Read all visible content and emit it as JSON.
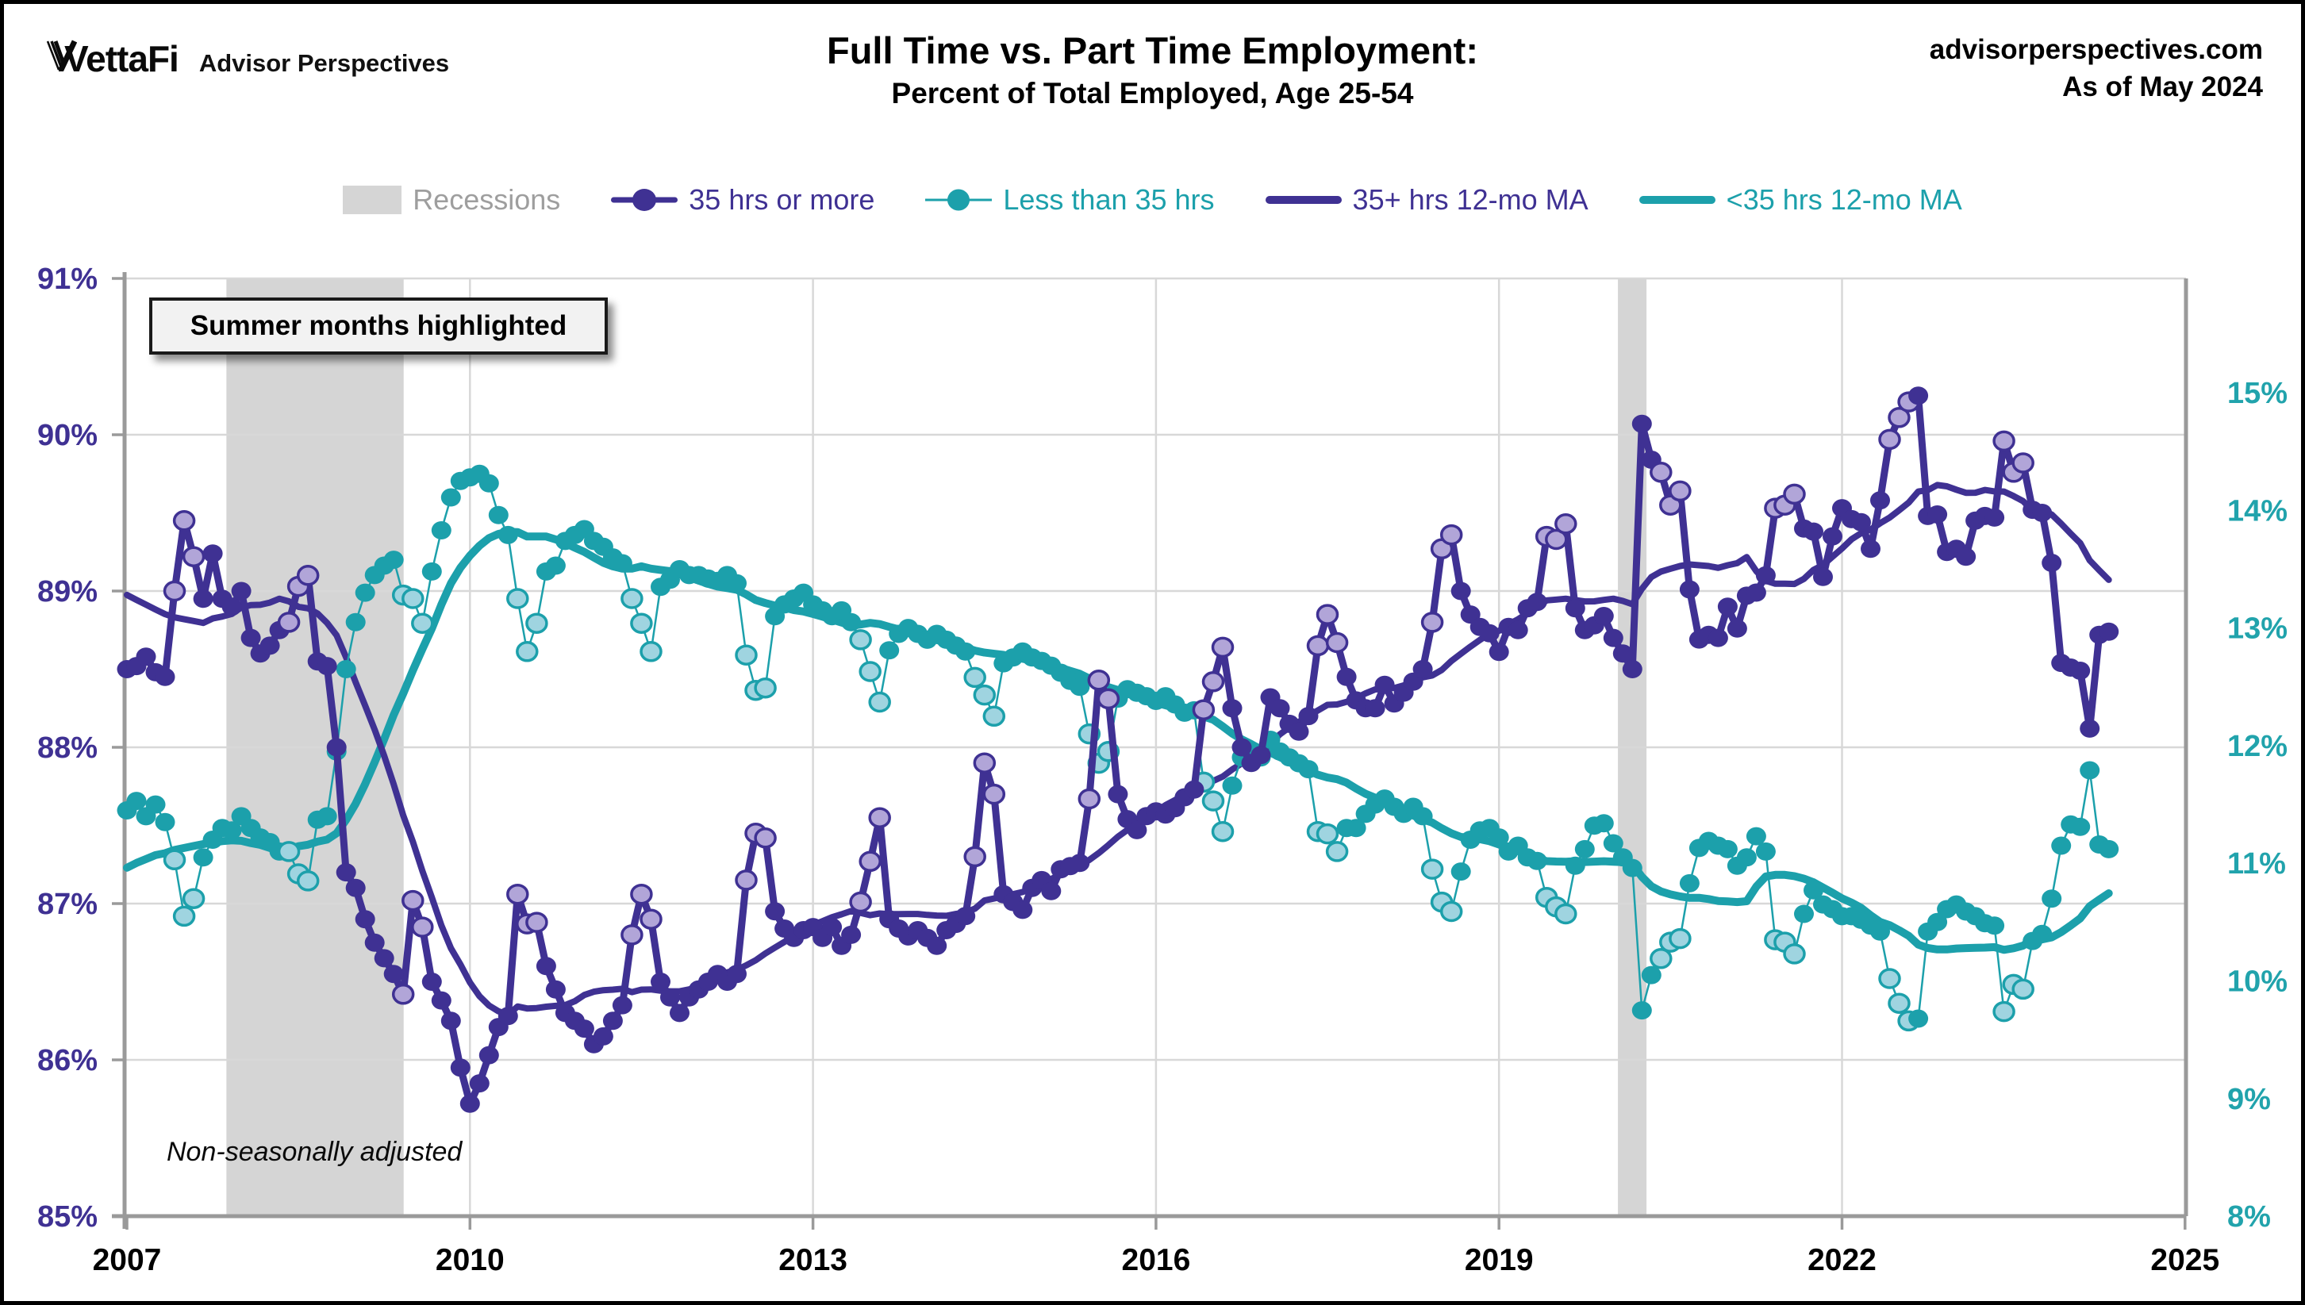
{
  "header": {
    "logo_primary": "VettaFi",
    "logo_secondary": "Advisor Perspectives",
    "title": "Full Time vs. Part Time Employment:",
    "subtitle": "Percent of Total Employed, Age 25-54",
    "source_site": "advisorperspectives.com",
    "as_of": "As of May 2024"
  },
  "annotations": {
    "summer_box": "Summer months highlighted",
    "nsa": "Non-seasonally adjusted"
  },
  "legend": [
    {
      "label": "Recessions",
      "type": "band",
      "color": "#D5D5D5",
      "text_color": "#9E9E9E"
    },
    {
      "label": "35 hrs or more",
      "type": "dot-line",
      "color": "#3F3193",
      "text_color": "#3F3193"
    },
    {
      "label": "Less than 35 hrs",
      "type": "dot-thin",
      "color": "#1CA0AB",
      "text_color": "#1CA0AB"
    },
    {
      "label": "35+ hrs 12-mo MA",
      "type": "line",
      "color": "#3F3193",
      "text_color": "#3F3193"
    },
    {
      "label": "<35 hrs 12-mo MA",
      "type": "line",
      "color": "#1CA0AB",
      "text_color": "#1CA0AB"
    }
  ],
  "chart_data": {
    "type": "line",
    "title": "Full Time vs. Part Time Employment: Percent of Total Employed, Age 25-54",
    "x_start": "2007-01",
    "x_end": "2024-05",
    "months": 209,
    "x_tick_years": [
      2007,
      2010,
      2013,
      2016,
      2019,
      2022,
      2025
    ],
    "grid_years": [
      2010,
      2013,
      2016,
      2019,
      2022
    ],
    "left_axis": {
      "ticks": [
        91,
        90,
        89,
        88,
        87,
        86,
        85
      ],
      "suffix": "%",
      "range": [
        85,
        91
      ],
      "color": "#3F3193"
    },
    "right_axis": {
      "ticks": [
        15,
        14,
        13,
        12,
        11,
        10,
        9,
        8
      ],
      "suffix": "%",
      "range": [
        8,
        15.0
      ],
      "color": "#21A3AC"
    },
    "recessions": [
      {
        "start": 2007.87,
        "end": 2009.42
      },
      {
        "start": 2020.04,
        "end": 2020.29
      }
    ],
    "summer_months_highlighted": [
      "Jun",
      "Jul",
      "Aug"
    ],
    "ma_window": 12,
    "series": [
      {
        "name": "35 hrs or more",
        "axis": "left",
        "color": "#3F3193",
        "light_color": "#B1A5D8",
        "values": [
          88.5,
          88.52,
          88.58,
          88.48,
          88.45,
          89.0,
          89.45,
          89.22,
          88.95,
          89.24,
          88.95,
          88.9,
          89.0,
          88.7,
          88.6,
          88.65,
          88.75,
          88.8,
          89.03,
          89.1,
          88.55,
          88.52,
          88.0,
          87.2,
          87.1,
          86.9,
          86.75,
          86.65,
          86.55,
          86.42,
          87.02,
          86.85,
          86.5,
          86.38,
          86.25,
          85.95,
          85.72,
          85.85,
          86.03,
          86.21,
          86.28,
          87.06,
          86.87,
          86.88,
          86.6,
          86.45,
          86.3,
          86.25,
          86.2,
          86.1,
          86.15,
          86.25,
          86.35,
          86.8,
          87.06,
          86.9,
          86.5,
          86.4,
          86.3,
          86.4,
          86.45,
          86.5,
          86.55,
          86.5,
          86.55,
          87.15,
          87.45,
          87.42,
          86.95,
          86.84,
          86.78,
          86.83,
          86.85,
          86.78,
          86.85,
          86.73,
          86.8,
          87.01,
          87.27,
          87.55,
          86.9,
          86.84,
          86.79,
          86.83,
          86.78,
          86.73,
          86.83,
          86.87,
          86.92,
          87.3,
          87.9,
          87.7,
          87.06,
          87.01,
          86.96,
          87.1,
          87.15,
          87.08,
          87.22,
          87.24,
          87.26,
          87.67,
          88.43,
          88.31,
          87.7,
          87.54,
          87.47,
          87.56,
          87.59,
          87.57,
          87.61,
          87.68,
          87.73,
          88.24,
          88.42,
          88.64,
          88.25,
          88.0,
          87.9,
          87.95,
          88.32,
          88.25,
          88.15,
          88.1,
          88.2,
          88.65,
          88.85,
          88.67,
          88.45,
          88.3,
          88.25,
          88.25,
          88.4,
          88.28,
          88.35,
          88.42,
          88.5,
          88.8,
          89.27,
          89.36,
          89.0,
          88.85,
          88.77,
          88.73,
          88.61,
          88.77,
          88.75,
          88.89,
          88.93,
          89.35,
          89.33,
          89.43,
          88.89,
          88.75,
          88.78,
          88.84,
          88.7,
          88.6,
          88.5,
          90.07,
          89.84,
          89.76,
          89.55,
          89.64,
          89.01,
          88.69,
          88.72,
          88.7,
          88.9,
          88.76,
          88.97,
          88.99,
          89.1,
          89.53,
          89.55,
          89.62,
          89.4,
          89.38,
          89.09,
          89.35,
          89.53,
          89.46,
          89.44,
          89.27,
          89.58,
          89.97,
          90.11,
          90.21,
          90.25,
          89.48,
          89.49,
          89.25,
          89.27,
          89.22,
          89.45,
          89.48,
          89.47,
          89.96,
          89.76,
          89.82,
          89.52,
          89.5,
          89.18,
          88.54,
          88.51,
          88.49,
          88.12,
          88.72,
          88.74
        ],
        "seed_prev12": [
          88.85,
          88.9,
          88.95,
          88.85,
          88.8,
          89.25,
          89.6,
          89.35,
          89.1,
          88.9,
          88.8,
          88.7
        ]
      },
      {
        "name": "Less than 35 hrs",
        "axis": "right",
        "color": "#1CA0AB",
        "light_color": "#9FD4E0",
        "values": [
          11.45,
          11.53,
          11.4,
          11.5,
          11.35,
          11.03,
          10.55,
          10.7,
          11.05,
          11.2,
          11.3,
          11.28,
          11.4,
          11.3,
          11.22,
          11.18,
          11.1,
          11.1,
          10.91,
          10.85,
          11.37,
          11.4,
          11.95,
          12.65,
          13.05,
          13.3,
          13.45,
          13.53,
          13.58,
          13.28,
          13.25,
          13.04,
          13.48,
          13.83,
          14.11,
          14.25,
          14.28,
          14.31,
          14.23,
          13.96,
          13.79,
          13.25,
          12.8,
          13.04,
          13.48,
          13.53,
          13.74,
          13.79,
          13.84,
          13.74,
          13.69,
          13.6,
          13.55,
          13.25,
          13.04,
          12.8,
          13.35,
          13.41,
          13.5,
          13.45,
          13.45,
          13.42,
          13.4,
          13.45,
          13.38,
          12.77,
          12.47,
          12.49,
          13.1,
          13.2,
          13.25,
          13.3,
          13.2,
          13.15,
          13.1,
          13.15,
          13.05,
          12.9,
          12.63,
          12.37,
          12.81,
          12.95,
          13.0,
          12.95,
          12.9,
          12.95,
          12.9,
          12.85,
          12.8,
          12.58,
          12.43,
          12.25,
          12.7,
          12.75,
          12.8,
          12.75,
          12.72,
          12.68,
          12.62,
          12.55,
          12.5,
          12.1,
          11.85,
          11.95,
          12.4,
          12.48,
          12.45,
          12.42,
          12.38,
          12.42,
          12.35,
          12.28,
          12.3,
          11.69,
          11.53,
          11.27,
          11.66,
          11.9,
          11.95,
          11.9,
          12.05,
          11.95,
          11.9,
          11.85,
          11.8,
          11.27,
          11.25,
          11.1,
          11.3,
          11.3,
          11.42,
          11.5,
          11.55,
          11.48,
          11.42,
          11.48,
          11.4,
          10.95,
          10.67,
          10.59,
          10.93,
          11.2,
          11.28,
          11.3,
          11.22,
          11.1,
          11.15,
          11.05,
          11.02,
          10.71,
          10.63,
          10.57,
          10.98,
          11.12,
          11.32,
          11.34,
          11.17,
          11.05,
          10.96,
          9.75,
          10.05,
          10.19,
          10.33,
          10.36,
          10.83,
          11.13,
          11.19,
          11.15,
          11.12,
          10.98,
          11.05,
          11.23,
          11.1,
          10.35,
          10.33,
          10.23,
          10.57,
          10.77,
          10.65,
          10.61,
          10.55,
          10.55,
          10.52,
          10.47,
          10.42,
          10.02,
          9.81,
          9.66,
          9.68,
          10.42,
          10.5,
          10.61,
          10.65,
          10.59,
          10.55,
          10.49,
          10.47,
          9.74,
          9.97,
          9.93,
          10.34,
          10.4,
          10.7,
          11.15,
          11.33,
          11.31,
          11.79,
          11.16,
          11.12
        ],
        "seed_prev12": [
          11.1,
          11.05,
          11.0,
          11.1,
          11.15,
          10.7,
          10.35,
          10.5,
          10.85,
          11.05,
          11.15,
          11.2
        ]
      }
    ],
    "style_colors": {
      "gridline": "#D8D8D8",
      "axis": "#9A9A9A",
      "recession_band": "#D5D5D5",
      "x_label": "#000000"
    }
  }
}
